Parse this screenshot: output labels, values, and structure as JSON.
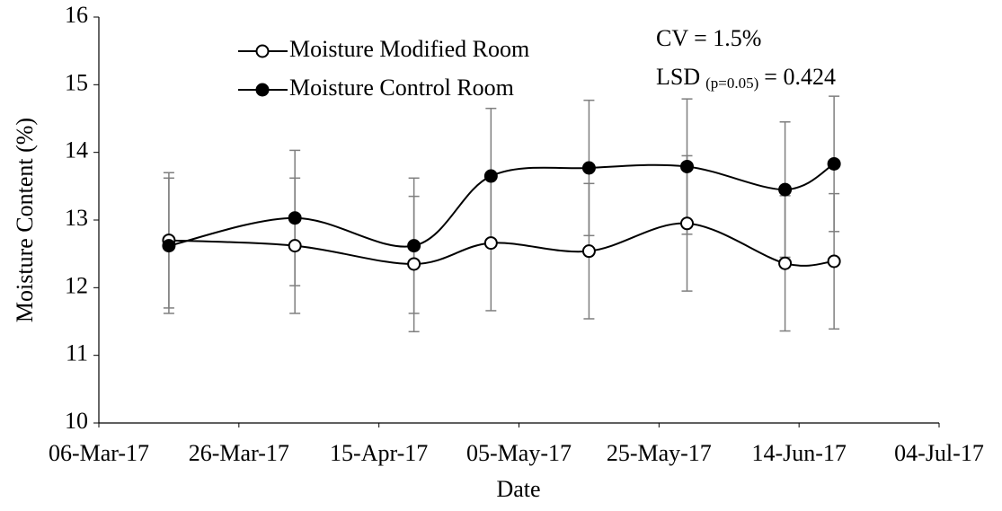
{
  "chart_data": {
    "type": "line",
    "x_label": "Date",
    "y_label": "Moisture Content (%)",
    "x": [
      "2017-03-16",
      "2017-04-03",
      "2017-04-20",
      "2017-05-01",
      "2017-05-15",
      "2017-05-29",
      "2017-06-12",
      "2017-06-19"
    ],
    "series": [
      {
        "name": "Moisture Modified Room",
        "color": "#000000",
        "marker_fill": "#ffffff",
        "values": [
          12.7,
          12.62,
          12.35,
          12.66,
          12.54,
          12.95,
          12.36,
          12.39
        ],
        "errors": [
          1.0,
          1.0,
          1.0,
          1.0,
          1.0,
          1.0,
          1.0,
          1.0
        ]
      },
      {
        "name": "Moisture Control Room",
        "color": "#000000",
        "marker_fill": "#000000",
        "values": [
          12.62,
          13.03,
          12.62,
          13.65,
          13.77,
          13.79,
          13.45,
          13.83
        ],
        "errors": [
          1.0,
          1.0,
          1.0,
          1.0,
          1.0,
          1.0,
          1.0,
          1.0
        ]
      }
    ],
    "error_color": "#7f7f7f",
    "xlim": [
      "2017-03-06",
      "2017-07-04"
    ],
    "xticks": [
      {
        "value": "2017-03-06",
        "label": "06-Mar-17"
      },
      {
        "value": "2017-03-26",
        "label": "26-Mar-17"
      },
      {
        "value": "2017-04-15",
        "label": "15-Apr-17"
      },
      {
        "value": "2017-05-05",
        "label": "05-May-17"
      },
      {
        "value": "2017-05-25",
        "label": "25-May-17"
      },
      {
        "value": "2017-06-14",
        "label": "14-Jun-17"
      },
      {
        "value": "2017-07-04",
        "label": "04-Jul-17"
      }
    ],
    "ylim": [
      10,
      16
    ],
    "yticks": [
      10,
      11,
      12,
      13,
      14,
      15,
      16
    ],
    "smooth": true,
    "grid": false,
    "legend_position": "top-left",
    "annotations": {
      "cv": "CV = 1.5%",
      "lsd": "LSD",
      "lsd_sub": "(p=0.05)",
      "lsd_value": "= 0.424"
    }
  }
}
